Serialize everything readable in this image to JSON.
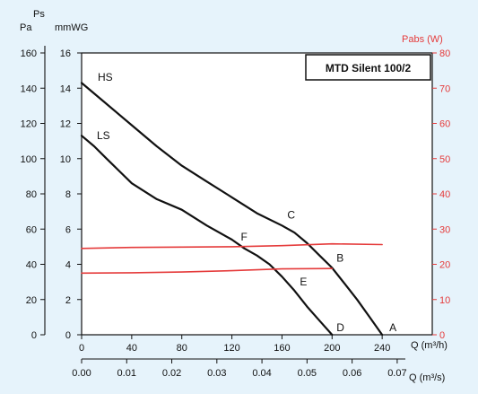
{
  "chart_data": {
    "type": "line",
    "title": "MTD Silent 100/2",
    "axes": {
      "left_outer": {
        "label_top": "Ps",
        "label": "Pa",
        "range": [
          0,
          160
        ],
        "ticks": [
          "0",
          "20",
          "40",
          "60",
          "80",
          "100",
          "120",
          "140",
          "160"
        ]
      },
      "left_inner": {
        "label": "mmWG",
        "range": [
          0,
          16
        ],
        "ticks": [
          "0",
          "2",
          "4",
          "6",
          "8",
          "10",
          "12",
          "14",
          "16"
        ]
      },
      "right": {
        "label": "Pabs (W)",
        "color": "#e53b3b",
        "range": [
          0,
          80
        ],
        "ticks": [
          "0",
          "10",
          "20",
          "30",
          "40",
          "50",
          "60",
          "70",
          "80"
        ]
      },
      "bottom_primary": {
        "label": "Q (m³/h)",
        "range": [
          0,
          280
        ],
        "ticks": [
          "0",
          "40",
          "80",
          "120",
          "160",
          "200",
          "240"
        ]
      },
      "bottom_secondary": {
        "label": "Q (m³/s)",
        "ticks": [
          "0.00",
          "0.01",
          "0.02",
          "0.03",
          "0.04",
          "0.05",
          "0.06",
          "0.07"
        ]
      }
    },
    "series": [
      {
        "name": "HS",
        "color": "#111111",
        "x": [
          0,
          20,
          40,
          60,
          80,
          100,
          120,
          140,
          160,
          170,
          180,
          190,
          200,
          210,
          220,
          230,
          240
        ],
        "y": [
          143,
          131,
          119,
          107,
          96,
          87,
          78,
          69,
          62,
          58,
          52,
          45,
          38,
          29,
          20,
          10,
          0
        ]
      },
      {
        "name": "LS",
        "color": "#111111",
        "x": [
          0,
          10,
          20,
          30,
          40,
          60,
          80,
          100,
          120,
          130,
          140,
          150,
          160,
          170,
          180,
          190,
          200
        ],
        "y": [
          113,
          107,
          100,
          93,
          86,
          77,
          71,
          62,
          54,
          49,
          45,
          40,
          33,
          25,
          16,
          8,
          0
        ]
      },
      {
        "name": "",
        "axis": "right",
        "color": "#e53b3b",
        "x": [
          0,
          40,
          80,
          120,
          160,
          200,
          240
        ],
        "y": [
          24.5,
          24.8,
          24.9,
          25,
          25.3,
          25.8,
          25.6
        ]
      },
      {
        "name": "",
        "axis": "right",
        "color": "#e53b3b",
        "x": [
          0,
          40,
          80,
          120,
          160,
          200
        ],
        "y": [
          17.5,
          17.6,
          17.8,
          18.2,
          18.7,
          18.8
        ]
      }
    ],
    "point_labels": [
      {
        "text": "A",
        "x": 240,
        "y": 0
      },
      {
        "text": "B",
        "x": 200,
        "y": 38
      },
      {
        "text": "C",
        "x": 160,
        "y": 62
      },
      {
        "text": "D",
        "x": 200,
        "y": 0
      },
      {
        "text": "E",
        "x": 170,
        "y": 25
      },
      {
        "text": "F",
        "x": 130,
        "y": 49
      }
    ],
    "grid": false,
    "legend": "none"
  }
}
